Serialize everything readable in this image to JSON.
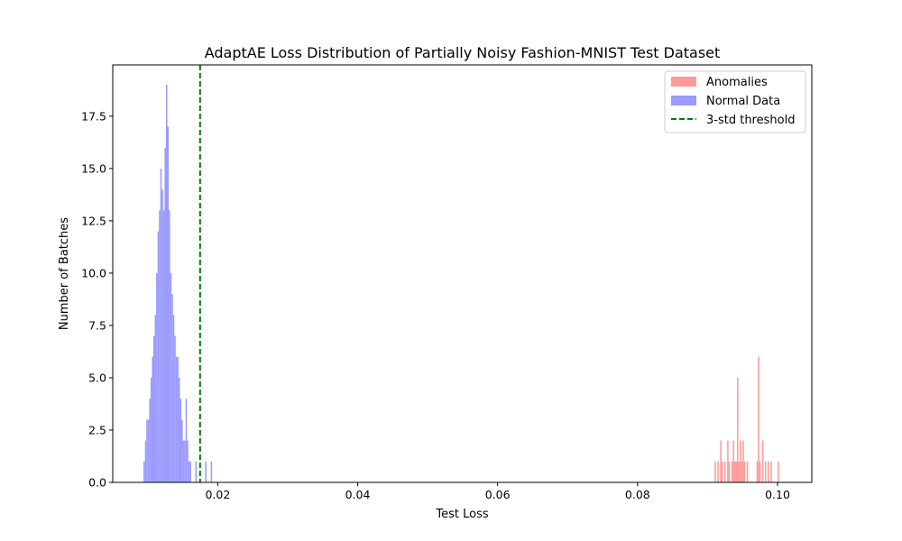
{
  "chart_data": {
    "type": "bar",
    "title": "AdaptAE Loss Distribution of Partially Noisy Fashion-MNIST Test Dataset",
    "xlabel": "Test Loss",
    "ylabel": "Number of Batches",
    "xlim": [
      0.005,
      0.1049
    ],
    "ylim": [
      0,
      19.95
    ],
    "grid": false,
    "legend_position": "upper-right",
    "x_ticks": [
      {
        "value": 0.02,
        "label": "0.02"
      },
      {
        "value": 0.04,
        "label": "0.04"
      },
      {
        "value": 0.06,
        "label": "0.06"
      },
      {
        "value": 0.08,
        "label": "0.08"
      },
      {
        "value": 0.1,
        "label": "0.10"
      }
    ],
    "y_ticks": [
      {
        "value": 0.0,
        "label": "0.0"
      },
      {
        "value": 2.5,
        "label": "2.5"
      },
      {
        "value": 5.0,
        "label": "5.0"
      },
      {
        "value": 7.5,
        "label": "7.5"
      },
      {
        "value": 10.0,
        "label": "10.0"
      },
      {
        "value": 12.5,
        "label": "12.5"
      },
      {
        "value": 15.0,
        "label": "15.0"
      },
      {
        "value": 17.5,
        "label": "17.5"
      }
    ],
    "series": [
      {
        "name": "Anomalies",
        "kind": "histogram",
        "color": "#ff9a9a",
        "bin_width": 0.0002,
        "bins": [
          {
            "x": 0.091,
            "count": 1
          },
          {
            "x": 0.0914,
            "count": 1
          },
          {
            "x": 0.0918,
            "count": 2
          },
          {
            "x": 0.092,
            "count": 1
          },
          {
            "x": 0.0924,
            "count": 1
          },
          {
            "x": 0.0928,
            "count": 2
          },
          {
            "x": 0.093,
            "count": 1
          },
          {
            "x": 0.0934,
            "count": 1
          },
          {
            "x": 0.0936,
            "count": 2
          },
          {
            "x": 0.0938,
            "count": 1
          },
          {
            "x": 0.094,
            "count": 1
          },
          {
            "x": 0.0942,
            "count": 5
          },
          {
            "x": 0.0944,
            "count": 1
          },
          {
            "x": 0.0946,
            "count": 2
          },
          {
            "x": 0.0948,
            "count": 1
          },
          {
            "x": 0.095,
            "count": 2
          },
          {
            "x": 0.0952,
            "count": 1
          },
          {
            "x": 0.0956,
            "count": 1
          },
          {
            "x": 0.097,
            "count": 1
          },
          {
            "x": 0.0972,
            "count": 6
          },
          {
            "x": 0.0974,
            "count": 1
          },
          {
            "x": 0.0978,
            "count": 2
          },
          {
            "x": 0.0982,
            "count": 1
          },
          {
            "x": 0.0986,
            "count": 1
          },
          {
            "x": 0.099,
            "count": 1
          },
          {
            "x": 0.1,
            "count": 1
          }
        ]
      },
      {
        "name": "Normal Data",
        "kind": "histogram",
        "color": "#9a9aff",
        "bin_width": 0.0002,
        "bins": [
          {
            "x": 0.0094,
            "count": 1
          },
          {
            "x": 0.0096,
            "count": 2
          },
          {
            "x": 0.0098,
            "count": 3
          },
          {
            "x": 0.01,
            "count": 3
          },
          {
            "x": 0.0102,
            "count": 4
          },
          {
            "x": 0.0104,
            "count": 5
          },
          {
            "x": 0.0106,
            "count": 6
          },
          {
            "x": 0.0108,
            "count": 7
          },
          {
            "x": 0.011,
            "count": 8
          },
          {
            "x": 0.0112,
            "count": 10
          },
          {
            "x": 0.0114,
            "count": 12
          },
          {
            "x": 0.0116,
            "count": 13
          },
          {
            "x": 0.0118,
            "count": 15
          },
          {
            "x": 0.012,
            "count": 14
          },
          {
            "x": 0.0122,
            "count": 13
          },
          {
            "x": 0.0124,
            "count": 16
          },
          {
            "x": 0.0126,
            "count": 19
          },
          {
            "x": 0.0128,
            "count": 17
          },
          {
            "x": 0.013,
            "count": 13
          },
          {
            "x": 0.0132,
            "count": 10
          },
          {
            "x": 0.0134,
            "count": 9
          },
          {
            "x": 0.0136,
            "count": 8
          },
          {
            "x": 0.0138,
            "count": 7
          },
          {
            "x": 0.014,
            "count": 6
          },
          {
            "x": 0.0142,
            "count": 6
          },
          {
            "x": 0.0144,
            "count": 5
          },
          {
            "x": 0.0146,
            "count": 4
          },
          {
            "x": 0.0148,
            "count": 3
          },
          {
            "x": 0.015,
            "count": 2
          },
          {
            "x": 0.0152,
            "count": 2
          },
          {
            "x": 0.0154,
            "count": 4
          },
          {
            "x": 0.0156,
            "count": 2
          },
          {
            "x": 0.0158,
            "count": 1
          },
          {
            "x": 0.016,
            "count": 1
          },
          {
            "x": 0.0168,
            "count": 1
          },
          {
            "x": 0.0182,
            "count": 1
          },
          {
            "x": 0.019,
            "count": 1
          }
        ]
      },
      {
        "name": "3-std threshold",
        "kind": "vline",
        "color": "#008000",
        "dash": "dashed",
        "x": 0.01748
      }
    ]
  }
}
